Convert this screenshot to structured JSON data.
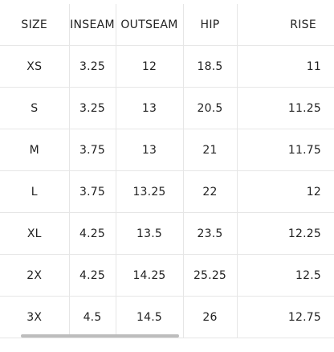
{
  "columns": [
    "SIZE",
    "INSEAM",
    "OUTSEAM",
    "HIP",
    "RISE"
  ],
  "rows": [
    {
      "size": "XS",
      "inseam": "3.25",
      "outseam": "12",
      "hip": "18.5",
      "rise": "11"
    },
    {
      "size": "S",
      "inseam": "3.25",
      "outseam": "13",
      "hip": "20.5",
      "rise": "11.25"
    },
    {
      "size": "M",
      "inseam": "3.75",
      "outseam": "13",
      "hip": "21",
      "rise": "11.75"
    },
    {
      "size": "L",
      "inseam": "3.75",
      "outseam": "13.25",
      "hip": "22",
      "rise": "12"
    },
    {
      "size": "XL",
      "inseam": "4.25",
      "outseam": "13.5",
      "hip": "23.5",
      "rise": "12.25"
    },
    {
      "size": "2X",
      "inseam": "4.25",
      "outseam": "14.25",
      "hip": "25.25",
      "rise": "12.5"
    },
    {
      "size": "3X",
      "inseam": "4.5",
      "outseam": "14.5",
      "hip": "26",
      "rise": "12.75"
    }
  ],
  "colors": {
    "text": "#222222",
    "grid": "#e6e6e6",
    "scrollbar": "#bdbdbd",
    "background": "#ffffff"
  }
}
